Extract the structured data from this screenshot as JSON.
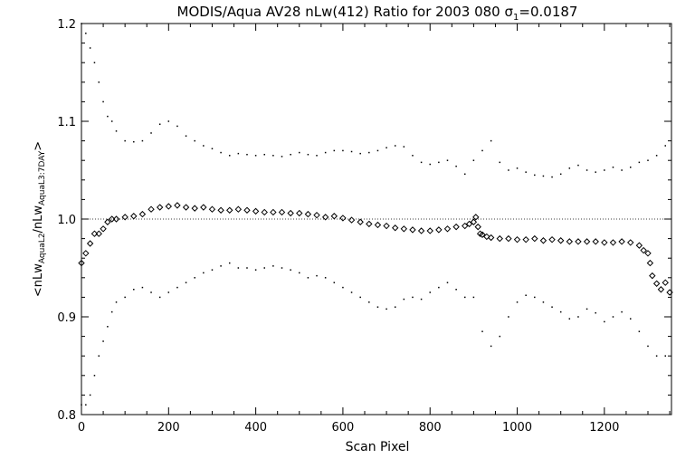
{
  "chart_data": {
    "type": "scatter",
    "title_main": "MODIS/Aqua AV28 nLw(412) Ratio for 2003 080 ",
    "title_sigma": "σ",
    "title_sigma_sub": "1",
    "title_value": "=0.0187",
    "xlabel": "Scan Pixel",
    "ylabel_parts": {
      "open": "<nLw",
      "sub1": "AquaL2",
      "mid": "/nLw",
      "sub2": "AquaL3:7DAY",
      "close": ">"
    },
    "xlim": [
      0,
      1354
    ],
    "ylim": [
      0.8,
      1.2
    ],
    "xticks": [
      0,
      200,
      400,
      600,
      800,
      1000,
      1200
    ],
    "xtick_labels": [
      "0",
      "200",
      "400",
      "600",
      "800",
      "1000",
      "1200"
    ],
    "yticks": [
      0.8,
      0.9,
      1.0,
      1.1,
      1.2
    ],
    "ytick_labels": [
      "0.8",
      "0.9",
      "1.0",
      "1.1",
      "1.2"
    ],
    "reference_line": 1.0,
    "series": [
      {
        "role": "mean",
        "marker": "diamond",
        "x": [
          0,
          10,
          20,
          30,
          40,
          50,
          60,
          70,
          80,
          100,
          120,
          140,
          160,
          180,
          200,
          220,
          240,
          260,
          280,
          300,
          320,
          340,
          360,
          380,
          400,
          420,
          440,
          460,
          480,
          500,
          520,
          540,
          560,
          580,
          600,
          620,
          640,
          660,
          680,
          700,
          720,
          740,
          760,
          780,
          800,
          820,
          840,
          860,
          880,
          890,
          900,
          905,
          910,
          915,
          920,
          930,
          940,
          960,
          980,
          1000,
          1020,
          1040,
          1060,
          1080,
          1100,
          1120,
          1140,
          1160,
          1180,
          1200,
          1220,
          1240,
          1260,
          1280,
          1290,
          1300,
          1305,
          1310,
          1320,
          1330,
          1340,
          1350
        ],
        "y": [
          0.955,
          0.965,
          0.975,
          0.985,
          0.985,
          0.99,
          0.997,
          1.0,
          1.0,
          1.002,
          1.003,
          1.005,
          1.01,
          1.012,
          1.013,
          1.014,
          1.012,
          1.011,
          1.012,
          1.01,
          1.009,
          1.009,
          1.01,
          1.009,
          1.008,
          1.007,
          1.007,
          1.007,
          1.006,
          1.006,
          1.005,
          1.004,
          1.002,
          1.003,
          1.001,
          0.999,
          0.997,
          0.995,
          0.994,
          0.993,
          0.991,
          0.99,
          0.989,
          0.988,
          0.988,
          0.989,
          0.99,
          0.992,
          0.993,
          0.995,
          0.997,
          1.002,
          0.992,
          0.985,
          0.984,
          0.982,
          0.981,
          0.98,
          0.98,
          0.979,
          0.979,
          0.98,
          0.978,
          0.979,
          0.978,
          0.977,
          0.977,
          0.977,
          0.977,
          0.976,
          0.976,
          0.977,
          0.976,
          0.973,
          0.968,
          0.965,
          0.955,
          0.942,
          0.934,
          0.928,
          0.935,
          0.925
        ]
      },
      {
        "role": "upper",
        "marker": "dot",
        "x": [
          0,
          10,
          20,
          30,
          40,
          50,
          60,
          70,
          80,
          100,
          120,
          140,
          160,
          180,
          200,
          220,
          240,
          260,
          280,
          300,
          320,
          340,
          360,
          380,
          400,
          420,
          440,
          460,
          480,
          500,
          520,
          540,
          560,
          580,
          600,
          620,
          640,
          660,
          680,
          700,
          720,
          740,
          760,
          780,
          800,
          820,
          840,
          860,
          880,
          900,
          920,
          940,
          960,
          980,
          1000,
          1020,
          1040,
          1060,
          1080,
          1100,
          1120,
          1140,
          1160,
          1180,
          1200,
          1220,
          1240,
          1260,
          1280,
          1300,
          1320,
          1340
        ],
        "y": [
          1.2,
          1.19,
          1.175,
          1.16,
          1.14,
          1.12,
          1.105,
          1.1,
          1.09,
          1.08,
          1.079,
          1.08,
          1.088,
          1.097,
          1.1,
          1.095,
          1.085,
          1.08,
          1.075,
          1.072,
          1.068,
          1.065,
          1.067,
          1.066,
          1.065,
          1.066,
          1.065,
          1.064,
          1.066,
          1.068,
          1.066,
          1.065,
          1.068,
          1.07,
          1.07,
          1.069,
          1.067,
          1.068,
          1.07,
          1.073,
          1.075,
          1.074,
          1.065,
          1.058,
          1.056,
          1.058,
          1.06,
          1.054,
          1.046,
          1.06,
          1.07,
          1.08,
          1.058,
          1.05,
          1.052,
          1.048,
          1.045,
          1.044,
          1.043,
          1.046,
          1.052,
          1.055,
          1.05,
          1.048,
          1.05,
          1.053,
          1.05,
          1.053,
          1.058,
          1.06,
          1.065,
          1.075
        ]
      },
      {
        "role": "lower",
        "marker": "dot",
        "x": [
          0,
          10,
          20,
          30,
          40,
          50,
          60,
          70,
          80,
          100,
          120,
          140,
          160,
          180,
          200,
          220,
          240,
          260,
          280,
          300,
          320,
          340,
          360,
          380,
          400,
          420,
          440,
          460,
          480,
          500,
          520,
          540,
          560,
          580,
          600,
          620,
          640,
          660,
          680,
          700,
          720,
          740,
          760,
          780,
          800,
          820,
          840,
          860,
          880,
          900,
          920,
          940,
          960,
          980,
          1000,
          1020,
          1040,
          1060,
          1080,
          1100,
          1120,
          1140,
          1160,
          1180,
          1200,
          1220,
          1240,
          1260,
          1280,
          1300,
          1320,
          1340
        ],
        "y": [
          0.81,
          0.81,
          0.82,
          0.84,
          0.86,
          0.875,
          0.89,
          0.905,
          0.915,
          0.92,
          0.928,
          0.93,
          0.925,
          0.92,
          0.925,
          0.93,
          0.935,
          0.94,
          0.945,
          0.948,
          0.952,
          0.955,
          0.95,
          0.95,
          0.948,
          0.95,
          0.952,
          0.95,
          0.948,
          0.945,
          0.94,
          0.942,
          0.94,
          0.935,
          0.93,
          0.925,
          0.92,
          0.915,
          0.91,
          0.908,
          0.91,
          0.918,
          0.92,
          0.918,
          0.925,
          0.93,
          0.935,
          0.928,
          0.92,
          0.92,
          0.885,
          0.87,
          0.88,
          0.9,
          0.915,
          0.922,
          0.92,
          0.915,
          0.91,
          0.905,
          0.898,
          0.9,
          0.908,
          0.904,
          0.895,
          0.9,
          0.905,
          0.898,
          0.885,
          0.87,
          0.86,
          0.86
        ]
      }
    ]
  }
}
